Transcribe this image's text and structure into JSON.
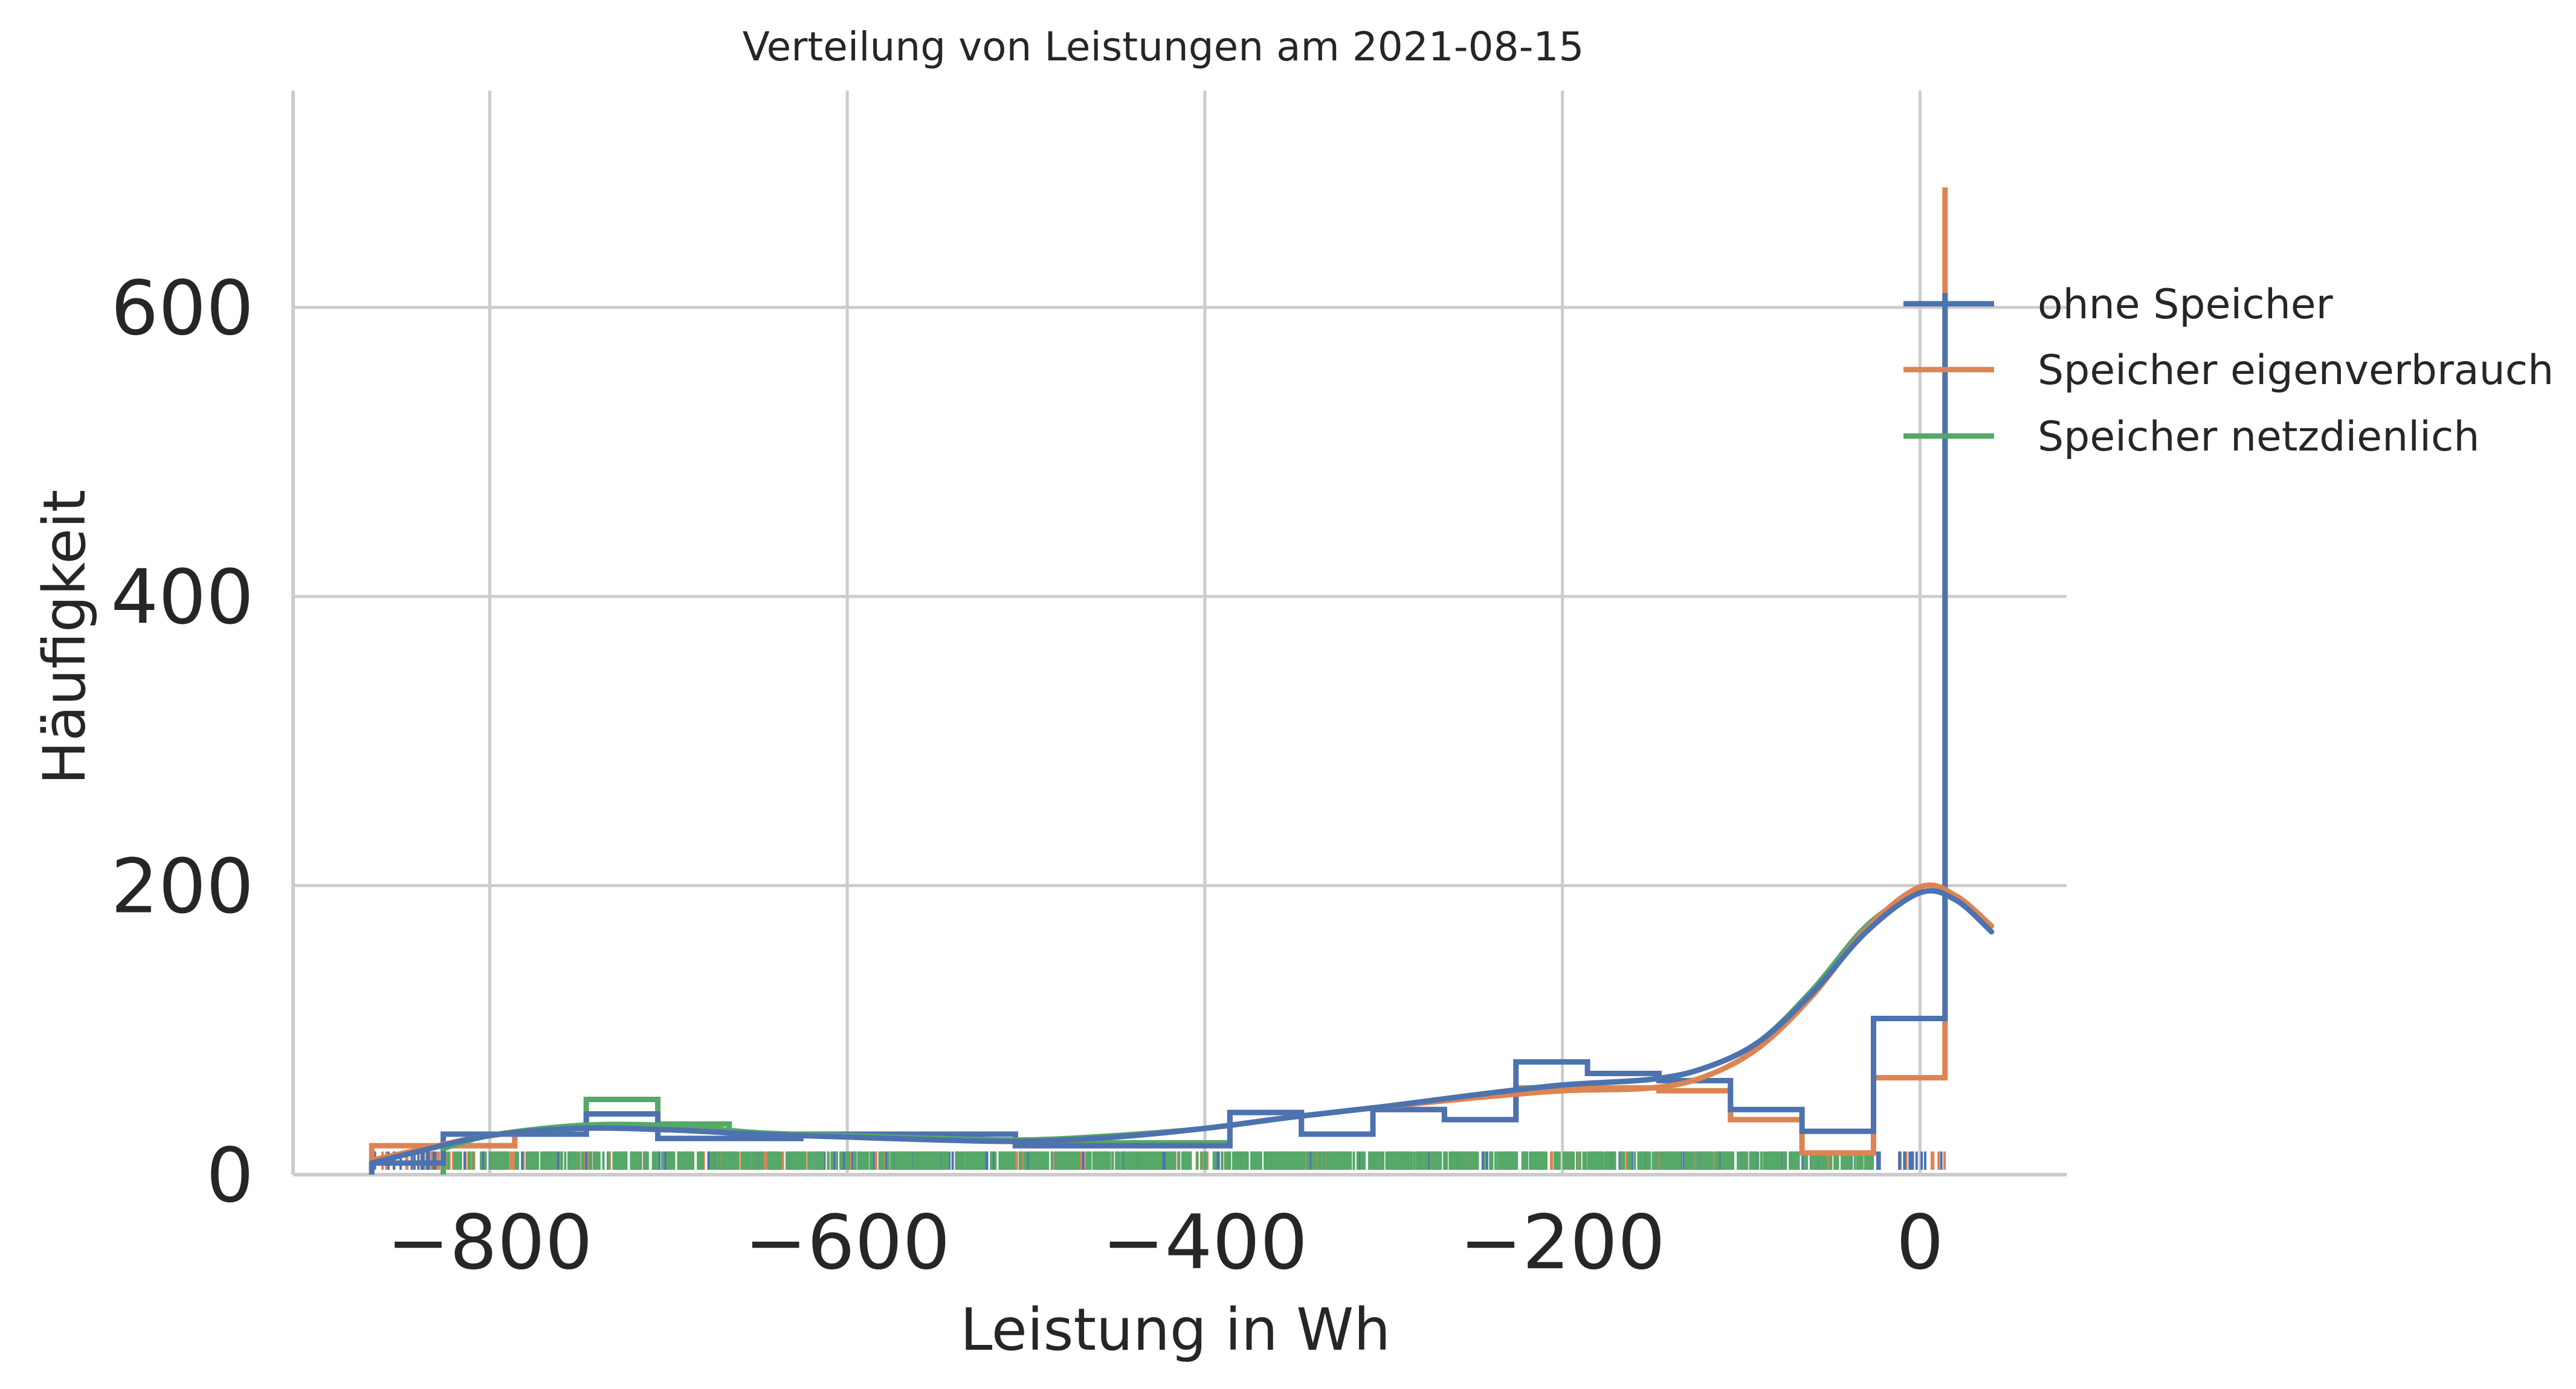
{
  "chart_data": {
    "type": "histogram",
    "title": "Verteilung von Leistungen am 2021-08-15",
    "xlabel": "Leistung in Wh",
    "ylabel": "Häufigkeit",
    "xlim": [
      -910,
      82
    ],
    "ylim": [
      0,
      750
    ],
    "xticks": [
      -800,
      -600,
      -400,
      -200,
      0
    ],
    "xtick_labels": [
      "−800",
      "−600",
      "−400",
      "−200",
      "0"
    ],
    "yticks": [
      0,
      200,
      400,
      600
    ],
    "ytick_labels": [
      "0",
      "200",
      "400",
      "600"
    ],
    "grid": true,
    "legend_position": "upper-right",
    "colors": {
      "ohne": "#4c72b0",
      "eigen": "#dd8452",
      "netz": "#55a868",
      "grid": "#cccccc",
      "spine": "#cccccc"
    },
    "series": [
      {
        "name": "ohne Speicher",
        "color": "#4c72b0",
        "bin_edges": [
          -866,
          -826,
          -786,
          -746,
          -706,
          -666,
          -626,
          -586,
          -546,
          -506,
          -466,
          -426,
          -386,
          -346,
          -306,
          -266,
          -226,
          -186,
          -146,
          -106,
          -66,
          -26,
          14
        ],
        "counts": [
          8,
          28,
          28,
          42,
          25,
          25,
          28,
          28,
          28,
          20,
          20,
          20,
          43,
          28,
          45,
          38,
          78,
          70,
          65,
          45,
          30,
          108,
          610
        ],
        "kde_x": [
          -866,
          -840,
          -800,
          -750,
          -700,
          -650,
          -600,
          -550,
          -500,
          -450,
          -400,
          -350,
          -300,
          -250,
          -200,
          -150,
          -120,
          -90,
          -60,
          -30,
          0,
          20,
          40
        ],
        "kde_y": [
          8,
          16,
          27,
          32,
          31,
          28,
          26,
          24,
          23,
          26,
          32,
          40,
          47,
          55,
          62,
          66,
          74,
          92,
          126,
          168,
          195,
          190,
          168
        ],
        "rug_color": "#4c72b0"
      },
      {
        "name": "Speicher eigenverbrauch",
        "color": "#dd8452",
        "bin_edges": [
          -866,
          -826,
          -786,
          -746,
          -706,
          -666,
          -626,
          -586,
          -546,
          -506,
          -466,
          -426,
          -386,
          -346,
          -306,
          -266,
          -226,
          -186,
          -146,
          -106,
          -66,
          -26,
          14
        ],
        "counts": [
          20,
          20,
          28,
          42,
          25,
          25,
          28,
          28,
          28,
          20,
          20,
          20,
          43,
          28,
          45,
          38,
          60,
          60,
          58,
          38,
          15,
          67,
          683
        ],
        "kde_x": [
          -866,
          -840,
          -800,
          -750,
          -700,
          -650,
          -600,
          -550,
          -500,
          -450,
          -400,
          -350,
          -300,
          -250,
          -200,
          -150,
          -120,
          -90,
          -60,
          -30,
          0,
          20,
          40
        ],
        "kde_y": [
          10,
          17,
          27,
          32,
          31,
          28,
          26,
          24,
          23,
          26,
          32,
          40,
          47,
          53,
          58,
          60,
          68,
          88,
          124,
          170,
          199,
          193,
          172
        ],
        "rug_color": "#dd8452"
      },
      {
        "name": "Speicher netzdienlich",
        "color": "#55a868",
        "bin_edges": [
          -826,
          -786,
          -746,
          -706,
          -666,
          -626,
          -586,
          -546,
          -506,
          -466,
          -426,
          -386
        ],
        "counts": [
          20,
          28,
          52,
          35,
          28,
          28,
          28,
          28,
          22,
          22,
          22,
          22
        ],
        "kde_x": [
          -826,
          -800,
          -750,
          -700,
          -650,
          -600,
          -550,
          -500,
          -450,
          -400,
          -350,
          -300,
          -250,
          -200,
          -150,
          -120,
          -90,
          -60,
          -30,
          0
        ],
        "kde_y": [
          18,
          27,
          34,
          34,
          29,
          27,
          25,
          24,
          27,
          32,
          40,
          47,
          55,
          62,
          66,
          74,
          92,
          128,
          172,
          198
        ],
        "rug_color": "#55a868"
      }
    ]
  }
}
